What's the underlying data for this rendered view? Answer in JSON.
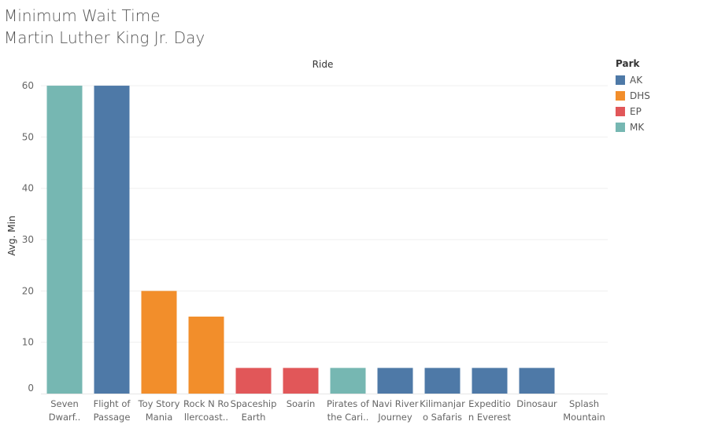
{
  "title": "Minimum Wait Time",
  "subtitle": "Martin Luther King Jr. Day",
  "chart_data": {
    "type": "bar",
    "title": "Minimum Wait Time",
    "subtitle": "Martin Luther King Jr. Day",
    "xlabel": "Ride",
    "ylabel": "Avg. Min",
    "ylim": [
      0,
      62
    ],
    "yticks": [
      0,
      10,
      20,
      30,
      40,
      50,
      60
    ],
    "grid": true,
    "legend_title": "Park",
    "legend_position": "top-right",
    "legend": [
      {
        "name": "AK",
        "color": "#4e79a7"
      },
      {
        "name": "DHS",
        "color": "#f28e2b"
      },
      {
        "name": "EP",
        "color": "#e15759"
      },
      {
        "name": "MK",
        "color": "#76b7b2"
      }
    ],
    "categories": [
      [
        "Seven",
        "Dwarf.."
      ],
      [
        "Flight of",
        "Passage"
      ],
      [
        "Toy Story",
        "Mania"
      ],
      [
        "Rock N Ro",
        "llercoast.."
      ],
      [
        "Spaceship",
        "Earth"
      ],
      [
        "Soarin"
      ],
      [
        "Pirates of",
        "the Cari.."
      ],
      [
        "Navi River",
        "Journey"
      ],
      [
        "Kilimanjar",
        "o Safaris"
      ],
      [
        "Expeditio",
        "n Everest"
      ],
      [
        "Dinosaur"
      ],
      [
        "Splash",
        "Mountain"
      ]
    ],
    "parks": [
      "MK",
      "AK",
      "DHS",
      "DHS",
      "EP",
      "EP",
      "MK",
      "AK",
      "AK",
      "AK",
      "AK",
      "MK"
    ],
    "values": [
      60,
      60,
      20,
      15,
      5,
      5,
      5,
      5,
      5,
      5,
      5,
      0
    ]
  }
}
